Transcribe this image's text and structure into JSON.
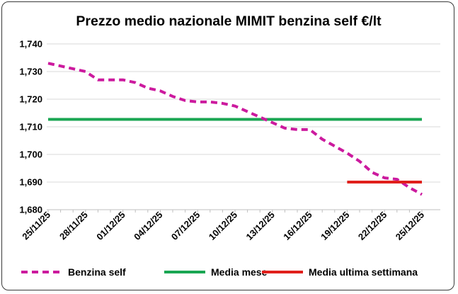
{
  "chart_data": {
    "type": "line",
    "title": "Prezzo medio nazionale MIMIT benzina self €/lt",
    "xlabel": "",
    "ylabel": "",
    "ylim": [
      1.68,
      1.74
    ],
    "yticks": [
      "1,680",
      "1,690",
      "1,700",
      "1,710",
      "1,720",
      "1,730",
      "1,740"
    ],
    "yticks_values": [
      1.68,
      1.69,
      1.7,
      1.71,
      1.72,
      1.73,
      1.74
    ],
    "x": [
      "25/11/25",
      "26/11/25",
      "27/11/25",
      "28/11/25",
      "29/11/25",
      "30/11/25",
      "01/12/25",
      "02/12/25",
      "03/12/25",
      "04/12/25",
      "05/12/25",
      "06/12/25",
      "07/12/25",
      "08/12/25",
      "09/12/25",
      "10/12/25",
      "11/12/25",
      "12/12/25",
      "13/12/25",
      "14/12/25",
      "15/12/25",
      "16/12/25",
      "17/12/25",
      "18/12/25",
      "19/12/25",
      "20/12/25",
      "21/12/25",
      "22/12/25",
      "23/12/25",
      "24/12/25",
      "25/12/25"
    ],
    "xticks": [
      "25/11/25",
      "28/11/25",
      "01/12/25",
      "04/12/25",
      "07/12/25",
      "10/12/25",
      "13/12/25",
      "16/12/25",
      "19/12/25",
      "22/12/25",
      "25/12/25"
    ],
    "grid": "horizontal",
    "legend_position": "bottom",
    "series": [
      {
        "name": "Benzina self",
        "color": "#cc1a9e",
        "style": "dashed",
        "values": [
          1.733,
          1.732,
          1.731,
          1.73,
          1.727,
          1.727,
          1.727,
          1.726,
          1.724,
          1.723,
          1.721,
          1.7195,
          1.719,
          1.719,
          1.7185,
          1.7175,
          1.7155,
          1.7135,
          1.7115,
          1.7095,
          1.709,
          1.709,
          1.7055,
          1.703,
          1.7005,
          1.6975,
          1.6935,
          1.6915,
          1.691,
          1.688,
          1.6855
        ]
      },
      {
        "name": "Media mese",
        "color": "#1aa653",
        "style": "solid",
        "values": [
          1.7127,
          1.7127,
          1.7127,
          1.7127,
          1.7127,
          1.7127,
          1.7127,
          1.7127,
          1.7127,
          1.7127,
          1.7127,
          1.7127,
          1.7127,
          1.7127,
          1.7127,
          1.7127,
          1.7127,
          1.7127,
          1.7127,
          1.7127,
          1.7127,
          1.7127,
          1.7127,
          1.7127,
          1.7127,
          1.7127,
          1.7127,
          1.7127,
          1.7127,
          1.7127,
          1.7127
        ]
      },
      {
        "name": "Media ultima settimana",
        "color": "#e0201c",
        "style": "solid",
        "values": [
          null,
          null,
          null,
          null,
          null,
          null,
          null,
          null,
          null,
          null,
          null,
          null,
          null,
          null,
          null,
          null,
          null,
          null,
          null,
          null,
          null,
          null,
          null,
          null,
          1.69,
          1.69,
          1.69,
          1.69,
          1.69,
          1.69,
          1.69
        ]
      }
    ]
  }
}
